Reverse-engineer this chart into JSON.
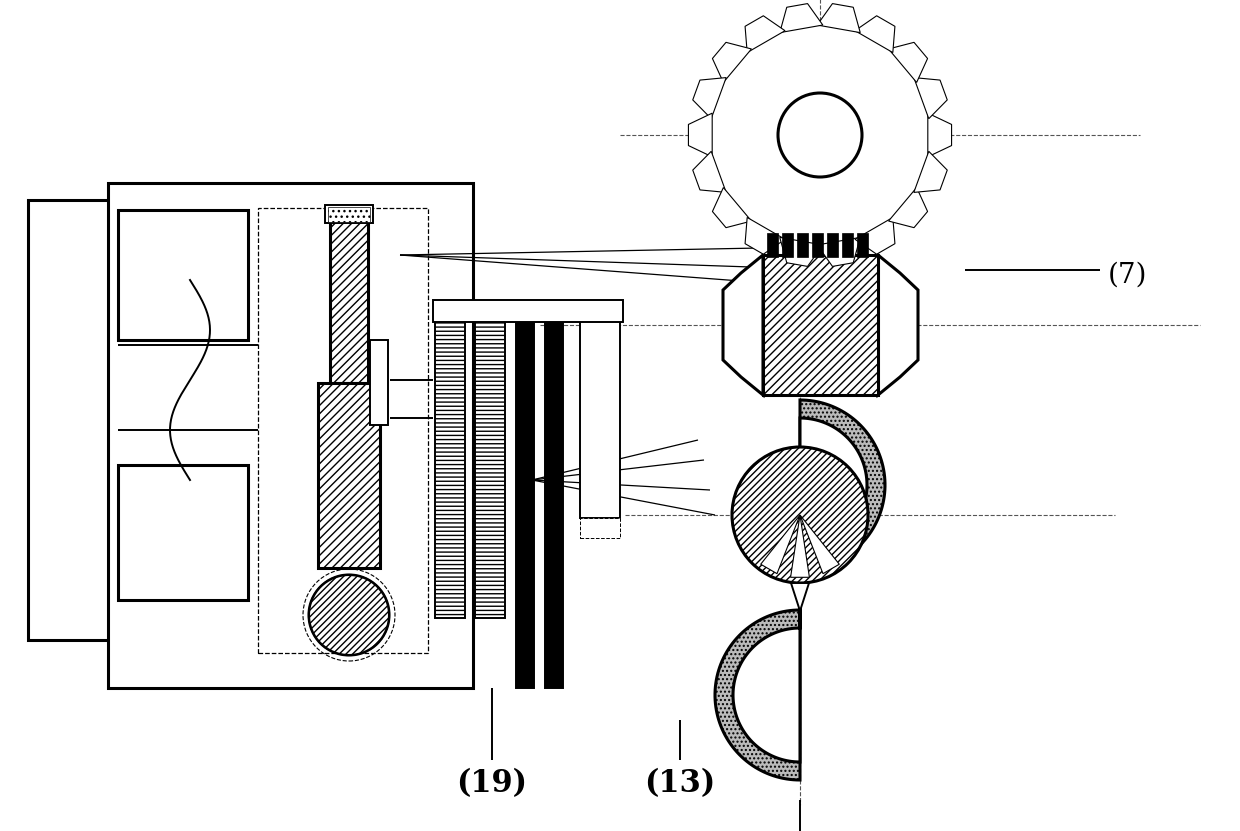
{
  "bg_color": "#ffffff",
  "line_color": "#000000",
  "label_7": "(7)",
  "label_19": "(19)",
  "label_13": "(13)",
  "label_fontsize": 20,
  "fig_width": 12.4,
  "fig_height": 8.31
}
